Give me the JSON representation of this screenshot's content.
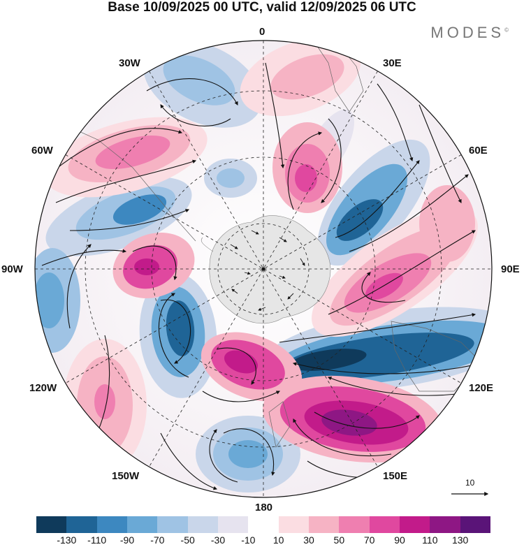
{
  "title": "Base 10/09/2025 00 UTC, valid 12/09/2025 06 UTC",
  "brand": "MODES",
  "brand_mark": "©",
  "longitude_labels": {
    "lon_0": "0",
    "lon_30e": "30E",
    "lon_60e": "60E",
    "lon_90e": "90E",
    "lon_120e": "120E",
    "lon_150e": "150E",
    "lon_180": "180",
    "lon_150w": "150W",
    "lon_120w": "120W",
    "lon_90w": "90W",
    "lon_60w": "60W",
    "lon_30w": "30W"
  },
  "reference_vector_label": "10",
  "colorbar": {
    "colors": [
      "#0f3a5b",
      "#1f6496",
      "#3d88c0",
      "#6aa9d6",
      "#9fc3e4",
      "#c9d6ea",
      "#e6e3ef",
      "#ffffff",
      "#fbdde2",
      "#f6b3c4",
      "#ef7fb0",
      "#e0489f",
      "#c21b8a",
      "#8e1784",
      "#5a1478"
    ],
    "tick_labels": [
      "-130",
      "-110",
      "-90",
      "-70",
      "-50",
      "-30",
      "-10",
      "10",
      "30",
      "50",
      "70",
      "90",
      "110",
      "130"
    ]
  },
  "map_colors": {
    "antarctica": "#e6e6e6",
    "contour": "#222222",
    "graticule": "#222222"
  }
}
